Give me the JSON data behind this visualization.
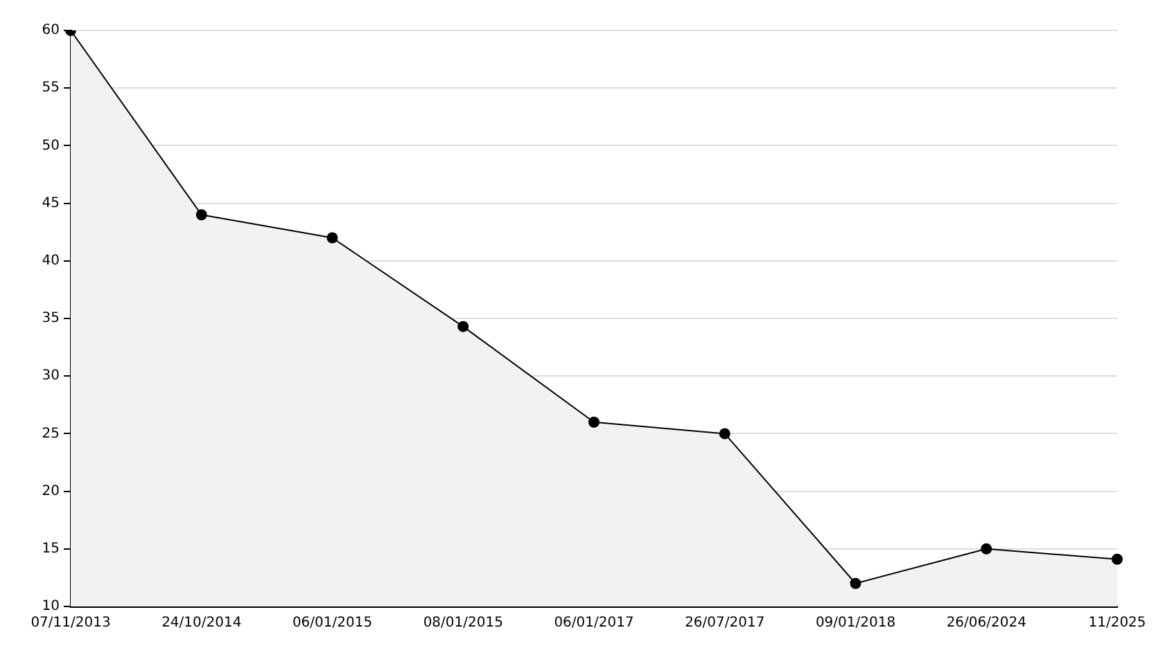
{
  "chart_data": {
    "type": "area",
    "categories": [
      "07/11/2013",
      "24/10/2014",
      "06/01/2015",
      "08/01/2015",
      "06/01/2017",
      "26/07/2017",
      "09/01/2018",
      "26/06/2024",
      "11/2025"
    ],
    "series": [
      {
        "color": "#000000",
        "values": [
          60,
          44,
          42,
          34.3,
          26,
          25,
          12,
          15,
          14.1
        ]
      }
    ],
    "ylim": [
      10,
      60
    ],
    "yticks": [
      10,
      15,
      20,
      25,
      30,
      35,
      40,
      45,
      50,
      55,
      60
    ],
    "grid": "y",
    "marker": "circle",
    "line_style": "solid"
  }
}
